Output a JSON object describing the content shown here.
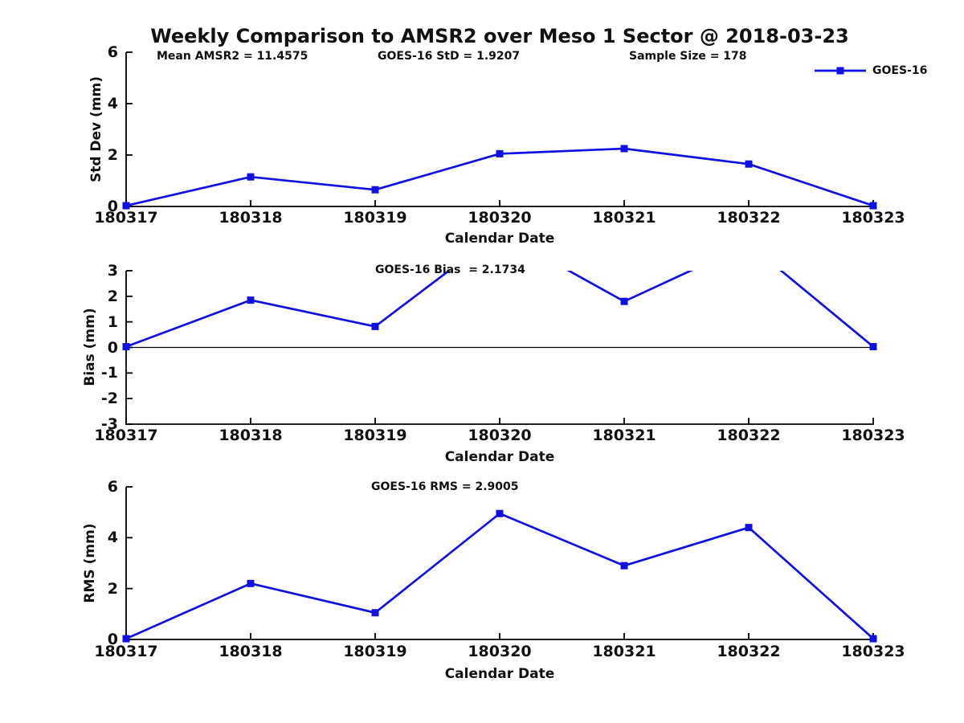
{
  "page": {
    "title": "Weekly Comparison to AMSR2 over Meso 1 Sector @ 2018-03-23"
  },
  "legend": {
    "label": "GOES-16"
  },
  "colors": {
    "series": "#0F10E3",
    "axis": "#000000",
    "zero_line": "#000000",
    "text": "#111111",
    "background": "#FFFFFF"
  },
  "chart_data": [
    {
      "type": "line",
      "ylabel": "Std Dev (mm)",
      "xlabel": "Calendar Date",
      "categories": [
        "180317",
        "180318",
        "180319",
        "180320",
        "180321",
        "180322",
        "180323"
      ],
      "series": [
        {
          "name": "GOES-16",
          "values": [
            0.03,
            1.15,
            0.65,
            2.05,
            2.25,
            1.65,
            0.03
          ]
        }
      ],
      "ylim": [
        0,
        6
      ],
      "yticks": [
        0,
        2,
        4,
        6
      ],
      "ytick_labels": [
        "0",
        "2",
        "4",
        "6"
      ],
      "annotations": [
        "Mean AMSR2 = 11.4575",
        "GOES-16 StD = 1.9207",
        "Sample Size = 178"
      ],
      "legend": {
        "position": "upper right",
        "entries": [
          "GOES-16"
        ]
      },
      "grid": false,
      "zero_line": false,
      "marker": "square"
    },
    {
      "type": "line",
      "ylabel": "Bias (mm)",
      "xlabel": "Calendar Date",
      "categories": [
        "180317",
        "180318",
        "180319",
        "180320",
        "180321",
        "180322",
        "180323"
      ],
      "series": [
        {
          "name": "GOES-16",
          "values": [
            0.03,
            1.85,
            0.82,
            4.5,
            1.8,
            4.05,
            0.03
          ]
        }
      ],
      "ylim": [
        -3,
        3
      ],
      "yticks": [
        3,
        2,
        1,
        0,
        -1,
        -2,
        -3
      ],
      "ytick_labels": [
        "3",
        "2",
        "1",
        "0",
        "-1",
        "-2",
        "-3"
      ],
      "annotations": [
        "GOES-16 Bias  = 2.1734"
      ],
      "grid": false,
      "zero_line": true,
      "clipped_above_ymax": [
        "180320",
        "180322"
      ],
      "marker": "square"
    },
    {
      "type": "line",
      "ylabel": "RMS (mm)",
      "xlabel": "Calendar Date",
      "categories": [
        "180317",
        "180318",
        "180319",
        "180320",
        "180321",
        "180322",
        "180323"
      ],
      "series": [
        {
          "name": "GOES-16",
          "values": [
            0.03,
            2.2,
            1.05,
            4.95,
            2.9,
            4.4,
            0.03
          ]
        }
      ],
      "ylim": [
        0,
        6
      ],
      "yticks": [
        0,
        2,
        4,
        6
      ],
      "ytick_labels": [
        "0",
        "2",
        "4",
        "6"
      ],
      "annotations": [
        "GOES-16 RMS = 2.9005"
      ],
      "grid": false,
      "zero_line": false,
      "marker": "square"
    }
  ]
}
